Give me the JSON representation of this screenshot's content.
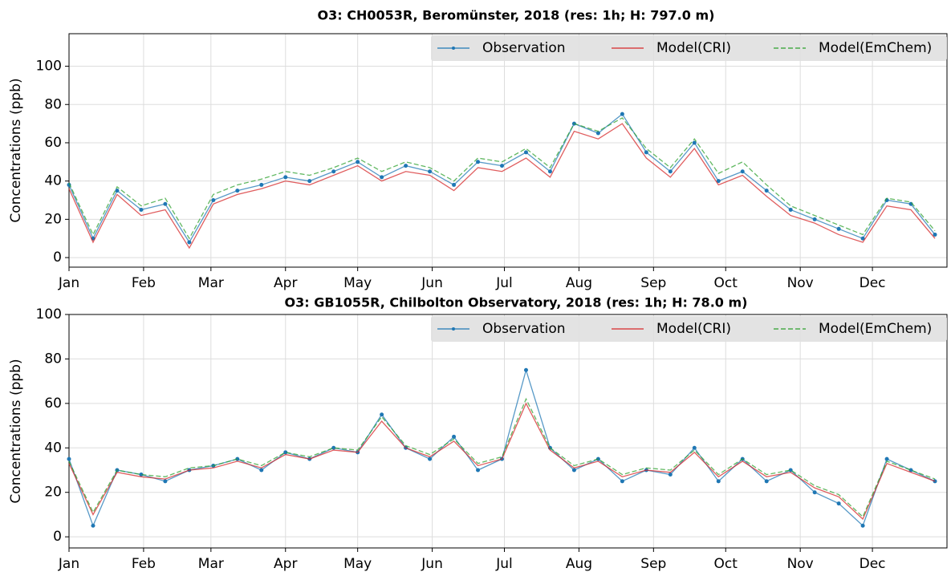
{
  "chart_data": [
    {
      "type": "line",
      "title": "O3: CH0053R, Beromünster, 2018 (res: 1h; H: 797.0 m)",
      "ylabel": "Concentrations (ppb)",
      "x": [
        0,
        10,
        20,
        30,
        40,
        50,
        60,
        70,
        80,
        90,
        100,
        110,
        120,
        130,
        140,
        150,
        160,
        170,
        180,
        190,
        200,
        210,
        220,
        230,
        240,
        250,
        260,
        270,
        280,
        290,
        300,
        310,
        320,
        330,
        340,
        350,
        360
      ],
      "xlim": [
        0,
        365
      ],
      "xticks": [
        {
          "value": 0,
          "label": "Jan"
        },
        {
          "value": 31,
          "label": "Feb"
        },
        {
          "value": 59,
          "label": "Mar"
        },
        {
          "value": 90,
          "label": "Apr"
        },
        {
          "value": 120,
          "label": "May"
        },
        {
          "value": 151,
          "label": "Jun"
        },
        {
          "value": 181,
          "label": "Jul"
        },
        {
          "value": 212,
          "label": "Aug"
        },
        {
          "value": 243,
          "label": "Sep"
        },
        {
          "value": 273,
          "label": "Oct"
        },
        {
          "value": 304,
          "label": "Nov"
        },
        {
          "value": 334,
          "label": "Dec"
        }
      ],
      "ylim": [
        -5,
        117
      ],
      "yticks": [
        0,
        20,
        40,
        60,
        80,
        100
      ],
      "grid": true,
      "legend": "upper right",
      "series": [
        {
          "name": "Observation",
          "color": "#1f77b4",
          "linestyle": "solid",
          "marker": true,
          "values": [
            38,
            10,
            35,
            25,
            28,
            8,
            30,
            35,
            38,
            42,
            40,
            45,
            50,
            42,
            48,
            45,
            38,
            50,
            48,
            55,
            45,
            70,
            65,
            75,
            55,
            45,
            60,
            40,
            45,
            35,
            25,
            20,
            15,
            10,
            30,
            28,
            12
          ]
        },
        {
          "name": "Model(CRI)",
          "color": "#d62728",
          "linestyle": "solid",
          "marker": false,
          "values": [
            36,
            8,
            33,
            22,
            25,
            5,
            28,
            33,
            36,
            40,
            38,
            43,
            48,
            40,
            45,
            43,
            35,
            47,
            45,
            52,
            42,
            66,
            62,
            70,
            52,
            42,
            57,
            38,
            43,
            32,
            22,
            18,
            12,
            8,
            27,
            25,
            10
          ]
        },
        {
          "name": "Model(EmChem)",
          "color": "#2ca02c",
          "linestyle": "dashed",
          "marker": false,
          "values": [
            39,
            12,
            37,
            27,
            31,
            10,
            33,
            38,
            41,
            45,
            43,
            47,
            52,
            45,
            50,
            47,
            40,
            52,
            50,
            57,
            47,
            70,
            66,
            73,
            57,
            47,
            62,
            44,
            50,
            38,
            27,
            22,
            17,
            12,
            31,
            29,
            14
          ]
        }
      ]
    },
    {
      "type": "line",
      "title": "O3: GB1055R, Chilbolton Observatory, 2018 (res: 1h; H: 78.0 m)",
      "ylabel": "Concentrations (ppb)",
      "x": [
        0,
        10,
        20,
        30,
        40,
        50,
        60,
        70,
        80,
        90,
        100,
        110,
        120,
        130,
        140,
        150,
        160,
        170,
        180,
        190,
        200,
        210,
        220,
        230,
        240,
        250,
        260,
        270,
        280,
        290,
        300,
        310,
        320,
        330,
        340,
        350,
        360
      ],
      "xlim": [
        0,
        365
      ],
      "xticks": [
        {
          "value": 0,
          "label": "Jan"
        },
        {
          "value": 31,
          "label": "Feb"
        },
        {
          "value": 59,
          "label": "Mar"
        },
        {
          "value": 90,
          "label": "Apr"
        },
        {
          "value": 120,
          "label": "May"
        },
        {
          "value": 151,
          "label": "Jun"
        },
        {
          "value": 181,
          "label": "Jul"
        },
        {
          "value": 212,
          "label": "Aug"
        },
        {
          "value": 243,
          "label": "Sep"
        },
        {
          "value": 273,
          "label": "Oct"
        },
        {
          "value": 304,
          "label": "Nov"
        },
        {
          "value": 334,
          "label": "Dec"
        }
      ],
      "ylim": [
        -5,
        100
      ],
      "yticks": [
        0,
        20,
        40,
        60,
        80,
        100
      ],
      "grid": true,
      "legend": "upper right",
      "series": [
        {
          "name": "Observation",
          "color": "#1f77b4",
          "linestyle": "solid",
          "marker": true,
          "values": [
            35,
            5,
            30,
            28,
            25,
            30,
            32,
            35,
            30,
            38,
            35,
            40,
            38,
            55,
            40,
            35,
            45,
            30,
            35,
            75,
            40,
            30,
            35,
            25,
            30,
            28,
            40,
            25,
            35,
            25,
            30,
            20,
            15,
            5,
            35,
            30,
            25
          ]
        },
        {
          "name": "Model(CRI)",
          "color": "#d62728",
          "linestyle": "solid",
          "marker": false,
          "values": [
            33,
            10,
            29,
            27,
            26,
            30,
            31,
            34,
            31,
            37,
            35,
            39,
            38,
            52,
            40,
            36,
            43,
            32,
            35,
            60,
            39,
            31,
            34,
            27,
            30,
            29,
            38,
            27,
            34,
            27,
            29,
            22,
            18,
            8,
            33,
            29,
            25
          ]
        },
        {
          "name": "Model(EmChem)",
          "color": "#2ca02c",
          "linestyle": "dashed",
          "marker": false,
          "values": [
            34,
            11,
            30,
            28,
            27,
            31,
            32,
            35,
            32,
            38,
            36,
            40,
            39,
            54,
            41,
            37,
            44,
            33,
            36,
            62,
            40,
            32,
            35,
            28,
            31,
            30,
            39,
            28,
            35,
            28,
            30,
            23,
            19,
            9,
            34,
            30,
            26
          ]
        }
      ]
    }
  ]
}
